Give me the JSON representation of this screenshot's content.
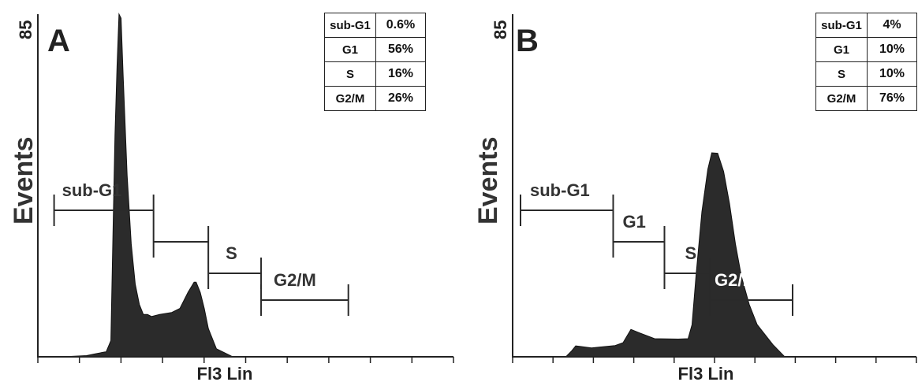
{
  "chart_data": [
    {
      "type": "area",
      "panel_label": "A",
      "xlabel": "Fl3 Lin",
      "ylabel": "Events",
      "y_max_label": "85",
      "ylim": [
        0,
        85
      ],
      "xlim": [
        0,
        1024
      ],
      "x": [
        0,
        60,
        120,
        140,
        165,
        168,
        180,
        185,
        190,
        195,
        200,
        205,
        210,
        220,
        230,
        240,
        250,
        260,
        270,
        280,
        300,
        330,
        350,
        370,
        385,
        390,
        400,
        410,
        420,
        440,
        480,
        1024
      ],
      "y": [
        0,
        0,
        0.3,
        0.7,
        1.2,
        1.2,
        4,
        30,
        55,
        72,
        85,
        84,
        70,
        45,
        28,
        18,
        13,
        10.5,
        10.5,
        10,
        10.5,
        11,
        12,
        16,
        18.5,
        18.5,
        16,
        12,
        7,
        2,
        0,
        0
      ],
      "gates": [
        {
          "name": "sub-G1",
          "percent": "0.6%",
          "x_start": 40,
          "x_end": 285
        },
        {
          "name": "G1",
          "percent": "56%",
          "x_start": 285,
          "x_end": 420
        },
        {
          "name": "S",
          "percent": "16%",
          "x_start": 420,
          "x_end": 550
        },
        {
          "name": "G2/M",
          "percent": "26%",
          "x_start": 550,
          "x_end": 765
        }
      ]
    },
    {
      "type": "area",
      "panel_label": "B",
      "xlabel": "Fl3 Lin",
      "ylabel": "Events",
      "y_max_label": "85",
      "ylim": [
        0,
        85
      ],
      "xlim": [
        0,
        1024
      ],
      "x": [
        0,
        110,
        135,
        150,
        160,
        170,
        200,
        260,
        280,
        300,
        320,
        360,
        420,
        445,
        455,
        465,
        480,
        495,
        505,
        520,
        535,
        550,
        565,
        580,
        600,
        620,
        660,
        690,
        705,
        1024
      ],
      "y": [
        0,
        0,
        0,
        1.5,
        2.7,
        2.6,
        2.2,
        2.8,
        3.5,
        6.8,
        6,
        4.5,
        4.4,
        4.5,
        8,
        20,
        36,
        46.5,
        50.6,
        50.5,
        46,
        38,
        28,
        20,
        13,
        8,
        3,
        0,
        0,
        0
      ],
      "gates": [
        {
          "name": "sub-G1",
          "percent": "4%",
          "x_start": 20,
          "x_end": 255
        },
        {
          "name": "G1",
          "percent": "10%",
          "x_start": 255,
          "x_end": 385
        },
        {
          "name": "S",
          "percent": "10%",
          "x_start": 385,
          "x_end": 500
        },
        {
          "name": "G2/M",
          "percent": "76%",
          "x_start": 500,
          "x_end": 710
        }
      ]
    }
  ]
}
